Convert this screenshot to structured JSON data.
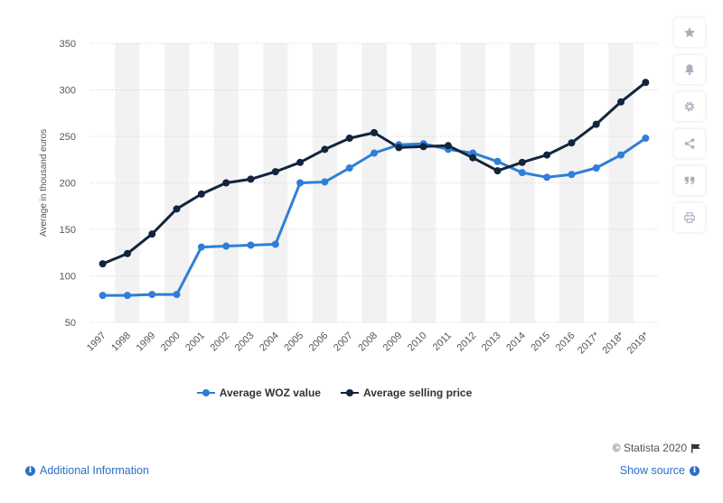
{
  "chart_data": {
    "type": "line",
    "x": [
      "1997",
      "1998",
      "1999",
      "2000",
      "2001",
      "2002",
      "2003",
      "2004",
      "2005",
      "2006",
      "2007",
      "2008",
      "2009",
      "2010",
      "2011",
      "2012",
      "2013",
      "2014",
      "2015",
      "2016",
      "2017*",
      "2018*",
      "2019*"
    ],
    "series": [
      {
        "name": "Average WOZ value",
        "color": "#2f7ed8",
        "values": [
          79,
          79,
          80,
          80,
          131,
          132,
          133,
          134,
          200,
          201,
          216,
          232,
          241,
          242,
          236,
          232,
          223,
          211,
          206,
          209,
          216,
          230,
          248
        ]
      },
      {
        "name": "Average selling price",
        "color": "#11253d",
        "values": [
          113,
          124,
          145,
          172,
          188,
          200,
          204,
          212,
          222,
          236,
          248,
          254,
          238,
          239,
          240,
          227,
          213,
          222,
          230,
          243,
          263,
          287,
          308
        ]
      }
    ],
    "title": "",
    "xlabel": "",
    "ylabel": "Average in thousand euros",
    "ylim": [
      50,
      350
    ],
    "yticks": [
      50,
      100,
      150,
      200,
      250,
      300,
      350
    ],
    "grid": true,
    "alternating_column_bands": true,
    "legend_position": "bottom"
  },
  "toolbar": {
    "icons": [
      "star-icon",
      "bell-icon",
      "gear-icon",
      "share-icon",
      "quote-icon",
      "print-icon"
    ]
  },
  "footer": {
    "credit": "© Statista 2020",
    "additional_info": "Additional Information",
    "show_source": "Show source"
  },
  "colors": {
    "accent": "#2a6fc9",
    "band": "#f2f2f2",
    "grid": "#d0d0d0",
    "text": "#555555"
  }
}
